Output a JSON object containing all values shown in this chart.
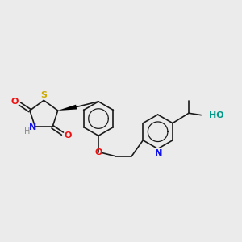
{
  "bg_color": "#ebebeb",
  "figsize": [
    3.0,
    3.0
  ],
  "dpi": 100,
  "bond_color": "#1a1a1a",
  "bond_width": 1.2,
  "S_color": "#ccaa00",
  "N_color": "#1010ee",
  "O_color": "#ee1010",
  "H_color": "#888888",
  "OH_color": "#009988",
  "xlim": [
    0,
    10
  ],
  "ylim": [
    0,
    10
  ]
}
